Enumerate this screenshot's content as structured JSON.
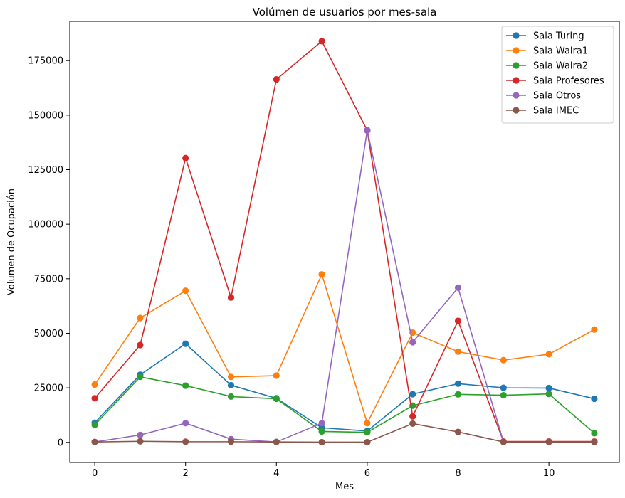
{
  "chart_data": {
    "type": "line",
    "title": "Volúmen de usuarios por mes-sala",
    "xlabel": "Mes",
    "ylabel": "Volumen de Ocupación",
    "x": [
      0,
      1,
      2,
      3,
      4,
      5,
      6,
      7,
      8,
      9,
      10,
      11
    ],
    "xlim": [
      -0.55,
      11.55
    ],
    "ylim": [
      -9200,
      193000
    ],
    "xticks": [
      0,
      2,
      4,
      6,
      8,
      10
    ],
    "yticks": [
      0,
      25000,
      50000,
      75000,
      100000,
      125000,
      150000,
      175000
    ],
    "grid": false,
    "legend_position": "top-right",
    "series": [
      {
        "name": "Sala Turing",
        "color": "#1f77b4",
        "values": [
          9000,
          31000,
          45200,
          26200,
          20200,
          6700,
          5200,
          22100,
          26900,
          25000,
          24900,
          20000
        ]
      },
      {
        "name": "Sala Waira1",
        "color": "#ff7f0e",
        "values": [
          26500,
          57000,
          69500,
          30000,
          30600,
          77000,
          8800,
          50300,
          41600,
          37700,
          40400,
          51700
        ]
      },
      {
        "name": "Sala Waira2",
        "color": "#2ca02c",
        "values": [
          8000,
          30000,
          26000,
          21000,
          20000,
          5000,
          4600,
          16800,
          22000,
          21600,
          22200,
          4200
        ]
      },
      {
        "name": "Sala Profesores",
        "color": "#d62728",
        "values": [
          20200,
          44600,
          130300,
          66400,
          166400,
          183900,
          143000,
          11900,
          55700,
          400,
          400,
          400
        ]
      },
      {
        "name": "Sala Otros",
        "color": "#9467bd",
        "values": [
          200,
          3400,
          8800,
          1500,
          200,
          8800,
          143100,
          45900,
          70900,
          200,
          200,
          200
        ]
      },
      {
        "name": "Sala IMEC",
        "color": "#8c564b",
        "values": [
          200,
          500,
          300,
          300,
          200,
          100,
          100,
          8600,
          4800,
          200,
          200,
          200
        ]
      }
    ]
  }
}
